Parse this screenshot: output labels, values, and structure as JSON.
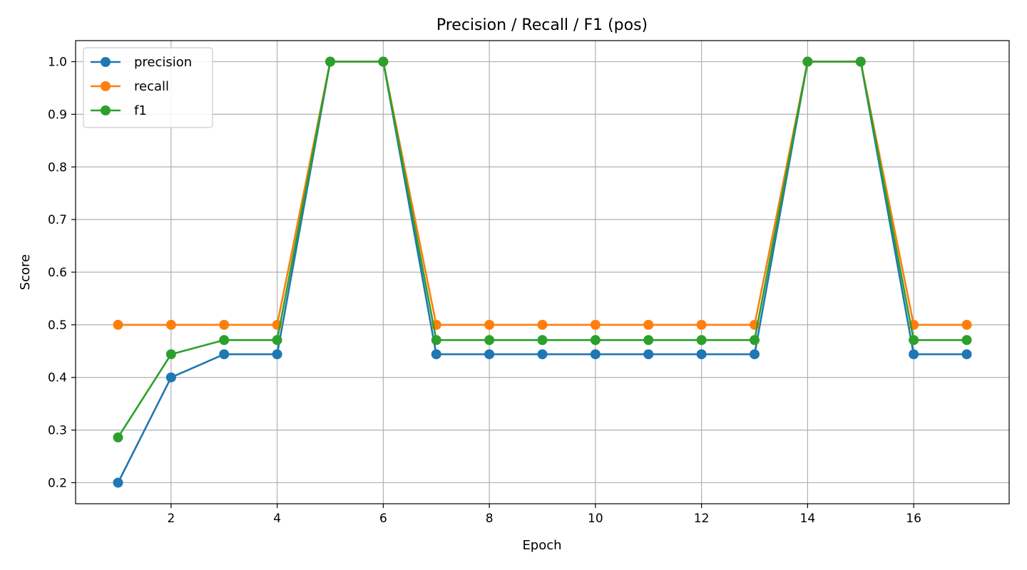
{
  "chart_data": {
    "type": "line",
    "title": "Precision / Recall / F1 (pos)",
    "xlabel": "Epoch",
    "ylabel": "Score",
    "xlim": [
      0.2,
      17.8
    ],
    "ylim": [
      0.16,
      1.04
    ],
    "x_ticks": [
      2,
      4,
      6,
      8,
      10,
      12,
      14,
      16
    ],
    "y_ticks": [
      0.2,
      0.3,
      0.4,
      0.5,
      0.6,
      0.7,
      0.8,
      0.9,
      1.0
    ],
    "grid": true,
    "legend_position": "upper-left",
    "x": [
      1,
      2,
      3,
      4,
      5,
      6,
      7,
      8,
      9,
      10,
      11,
      12,
      13,
      14,
      15,
      16,
      17
    ],
    "series": [
      {
        "name": "precision",
        "color": "#1f77b4",
        "values": [
          0.2,
          0.4,
          0.444,
          0.444,
          1.0,
          1.0,
          0.444,
          0.444,
          0.444,
          0.444,
          0.444,
          0.444,
          0.444,
          1.0,
          1.0,
          0.444,
          0.444
        ]
      },
      {
        "name": "recall",
        "color": "#ff7f0e",
        "values": [
          0.5,
          0.5,
          0.5,
          0.5,
          1.0,
          1.0,
          0.5,
          0.5,
          0.5,
          0.5,
          0.5,
          0.5,
          0.5,
          1.0,
          1.0,
          0.5,
          0.5
        ]
      },
      {
        "name": "f1",
        "color": "#2ca02c",
        "values": [
          0.286,
          0.444,
          0.471,
          0.471,
          1.0,
          1.0,
          0.471,
          0.471,
          0.471,
          0.471,
          0.471,
          0.471,
          0.471,
          1.0,
          1.0,
          0.471,
          0.471
        ]
      }
    ]
  }
}
